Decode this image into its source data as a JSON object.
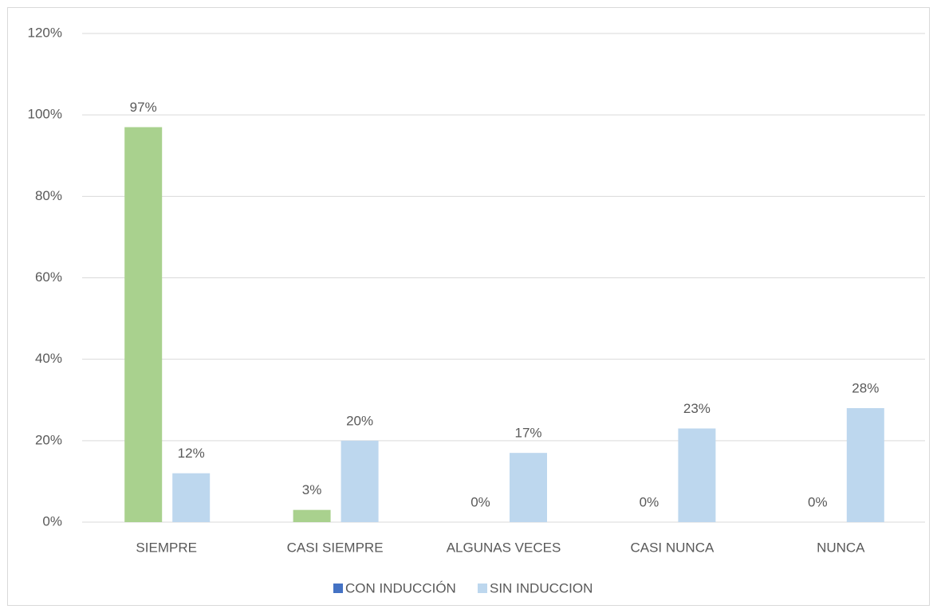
{
  "chart_data": {
    "type": "bar",
    "categories": [
      "SIEMPRE",
      "CASI SIEMPRE",
      "ALGUNAS VECES",
      "CASI NUNCA",
      "NUNCA"
    ],
    "series": [
      {
        "name": "CON INDUCCIÓN",
        "color": "#4472c4",
        "bar_color": "#a9d18e",
        "values": [
          97,
          3,
          0,
          0,
          0
        ],
        "value_labels": [
          "97%",
          "3%",
          "0%",
          "0%",
          "0%"
        ]
      },
      {
        "name": "SIN INDUCCION",
        "color": "#bdd7ee",
        "bar_color": "#bdd7ee",
        "values": [
          12,
          20,
          17,
          23,
          28
        ],
        "value_labels": [
          "12%",
          "20%",
          "17%",
          "23%",
          "28%"
        ]
      }
    ],
    "ylim": [
      0,
      120
    ],
    "yticks": [
      {
        "value": 0,
        "label": "0%"
      },
      {
        "value": 20,
        "label": "20%"
      },
      {
        "value": 40,
        "label": "40%"
      },
      {
        "value": 60,
        "label": "60%"
      },
      {
        "value": 80,
        "label": "80%"
      },
      {
        "value": 100,
        "label": "100%"
      },
      {
        "value": 120,
        "label": "120%"
      }
    ],
    "grid": true,
    "legend": "bottom"
  }
}
